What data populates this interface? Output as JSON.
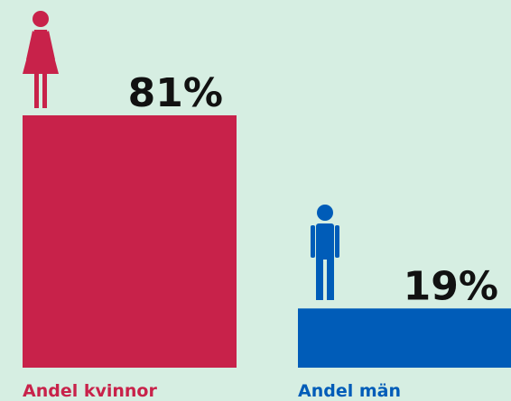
{
  "chart_data": {
    "type": "bar",
    "categories": [
      "Andel kvinnor",
      "Andel män"
    ],
    "values": [
      81,
      19
    ],
    "value_labels": [
      "81%",
      "19%"
    ],
    "colors": [
      "#c8224a",
      "#005cb8"
    ]
  }
}
